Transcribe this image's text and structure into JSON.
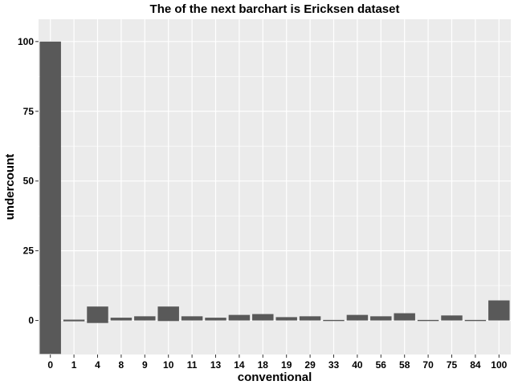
{
  "chart_data": {
    "type": "bar",
    "title": "The of the next barchart is Ericksen dataset",
    "xlabel": "conventional",
    "ylabel": "undercount",
    "categories": [
      "0",
      "1",
      "4",
      "8",
      "9",
      "10",
      "11",
      "13",
      "14",
      "18",
      "19",
      "29",
      "33",
      "40",
      "56",
      "58",
      "70",
      "75",
      "84",
      "100"
    ],
    "bars": [
      {
        "low": -12.0,
        "high": 100.0
      },
      {
        "low": -0.3,
        "high": 0.3
      },
      {
        "low": -0.9,
        "high": 5.0
      },
      {
        "low": 0.0,
        "high": 1.0
      },
      {
        "low": 0.0,
        "high": 1.5
      },
      {
        "low": -0.2,
        "high": 5.0
      },
      {
        "low": 0.0,
        "high": 1.5
      },
      {
        "low": 0.0,
        "high": 1.0
      },
      {
        "low": 0.0,
        "high": 2.0
      },
      {
        "low": 0.0,
        "high": 2.3
      },
      {
        "low": 0.0,
        "high": 1.2
      },
      {
        "low": 0.0,
        "high": 1.5
      },
      {
        "low": -0.2,
        "high": 0.2
      },
      {
        "low": 0.0,
        "high": 2.0
      },
      {
        "low": 0.0,
        "high": 1.5
      },
      {
        "low": 0.0,
        "high": 2.6
      },
      {
        "low": -0.2,
        "high": 0.2
      },
      {
        "low": 0.0,
        "high": 1.8
      },
      {
        "low": -0.2,
        "high": 0.2
      },
      {
        "low": 0.0,
        "high": 7.2
      }
    ],
    "yticks": [
      0,
      25,
      50,
      75,
      100
    ],
    "ylim": [
      -12.2,
      108
    ],
    "grid": true,
    "colors": {
      "bar": "#595959",
      "panel": "#ebebeb",
      "gridline": "#ffffff"
    }
  }
}
